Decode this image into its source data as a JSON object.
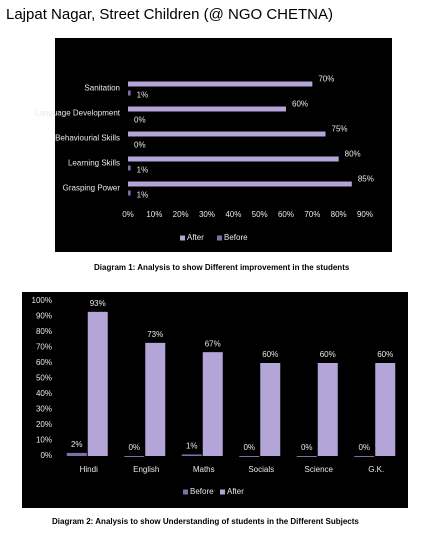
{
  "title": "Lajpat Nagar, Street Children (@ NGO CHETNA)",
  "chart_data": [
    {
      "type": "barh",
      "caption": "Diagram 1: Analysis to show Different improvement in the students",
      "categories": [
        "Sanitation",
        "Language Development",
        "Behaviourial Skills",
        "Learning Skills",
        "Grasping Power"
      ],
      "series": [
        {
          "name": "After",
          "color": "#b4a5d8",
          "values": [
            70,
            60,
            75,
            80,
            85
          ],
          "value_labels": [
            "70%",
            "60%",
            "75%",
            "80%",
            "85%"
          ]
        },
        {
          "name": "Before",
          "color": "#7e6fa8",
          "values": [
            1,
            0,
            0,
            1,
            1
          ],
          "value_labels": [
            "1%",
            "0%",
            "0%",
            "1%",
            "1%"
          ]
        }
      ],
      "xlim": [
        0,
        90
      ],
      "xticks": [
        {
          "value": 0,
          "label": "0%"
        },
        {
          "value": 10,
          "label": "10%"
        },
        {
          "value": 20,
          "label": "20%"
        },
        {
          "value": 30,
          "label": "30%"
        },
        {
          "value": 40,
          "label": "40%"
        },
        {
          "value": 50,
          "label": "50%"
        },
        {
          "value": 60,
          "label": "60%"
        },
        {
          "value": 70,
          "label": "70%"
        },
        {
          "value": 80,
          "label": "80%"
        },
        {
          "value": 90,
          "label": "90%"
        }
      ],
      "grid": false
    },
    {
      "type": "bar",
      "caption": "Diagram 2: Analysis to show Understanding of students in the Different Subjects",
      "categories": [
        "Hindi",
        "English",
        "Maths",
        "Socials",
        "Science",
        "G.K."
      ],
      "series": [
        {
          "name": "Before",
          "color": "#7e6fa8",
          "values": [
            2,
            0,
            1,
            0,
            0,
            0
          ],
          "value_labels": [
            "2%",
            "0%",
            "1%",
            "0%",
            "0%",
            "0%"
          ]
        },
        {
          "name": "After",
          "color": "#b4a5d8",
          "values": [
            93,
            73,
            67,
            60,
            60,
            60
          ],
          "value_labels": [
            "93%",
            "73%",
            "67%",
            "60%",
            "60%",
            "60%"
          ]
        }
      ],
      "ylim": [
        0,
        100
      ],
      "yticks": [
        {
          "value": 0,
          "label": "0%"
        },
        {
          "value": 10,
          "label": "10%"
        },
        {
          "value": 20,
          "label": "20%"
        },
        {
          "value": 30,
          "label": "30%"
        },
        {
          "value": 40,
          "label": "40%"
        },
        {
          "value": 50,
          "label": "50%"
        },
        {
          "value": 60,
          "label": "60%"
        },
        {
          "value": 70,
          "label": "70%"
        },
        {
          "value": 80,
          "label": "80%"
        },
        {
          "value": 90,
          "label": "90%"
        },
        {
          "value": 100,
          "label": "100%"
        }
      ],
      "grid": false
    }
  ]
}
